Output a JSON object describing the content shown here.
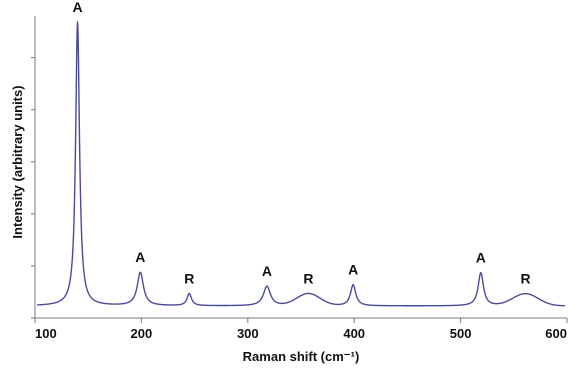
{
  "chart_data": {
    "type": "line",
    "xlabel": "Raman shift (cm⁻¹)",
    "ylabel": "Intensity (arbitrary units)",
    "xlim": [
      100,
      600
    ],
    "ylim": [
      0,
      1
    ],
    "x_ticks": [
      "100",
      "200",
      "300",
      "400",
      "500",
      "600"
    ],
    "y_tick_labels_shown": false,
    "grid": false,
    "legend": "none",
    "line_color": "#4a4a9c",
    "baseline": 0.04,
    "peaks": [
      {
        "x": 140,
        "height": 0.94,
        "width": 2.2,
        "label": "A",
        "shape": "lorentzian"
      },
      {
        "x": 199,
        "height": 0.11,
        "width": 3.5,
        "label": "A",
        "shape": "lorentzian"
      },
      {
        "x": 245,
        "height": 0.04,
        "width": 2.5,
        "label": "R",
        "shape": "lorentzian"
      },
      {
        "x": 318,
        "height": 0.065,
        "width": 4.0,
        "label": "A",
        "shape": "lorentzian"
      },
      {
        "x": 357,
        "height": 0.04,
        "width": 11,
        "label": "R",
        "shape": "gaussian"
      },
      {
        "x": 399,
        "height": 0.07,
        "width": 3.0,
        "label": "A",
        "shape": "lorentzian"
      },
      {
        "x": 519,
        "height": 0.11,
        "width": 3.0,
        "label": "A",
        "shape": "lorentzian"
      },
      {
        "x": 561,
        "height": 0.04,
        "width": 12,
        "label": "R",
        "shape": "gaussian"
      }
    ]
  }
}
